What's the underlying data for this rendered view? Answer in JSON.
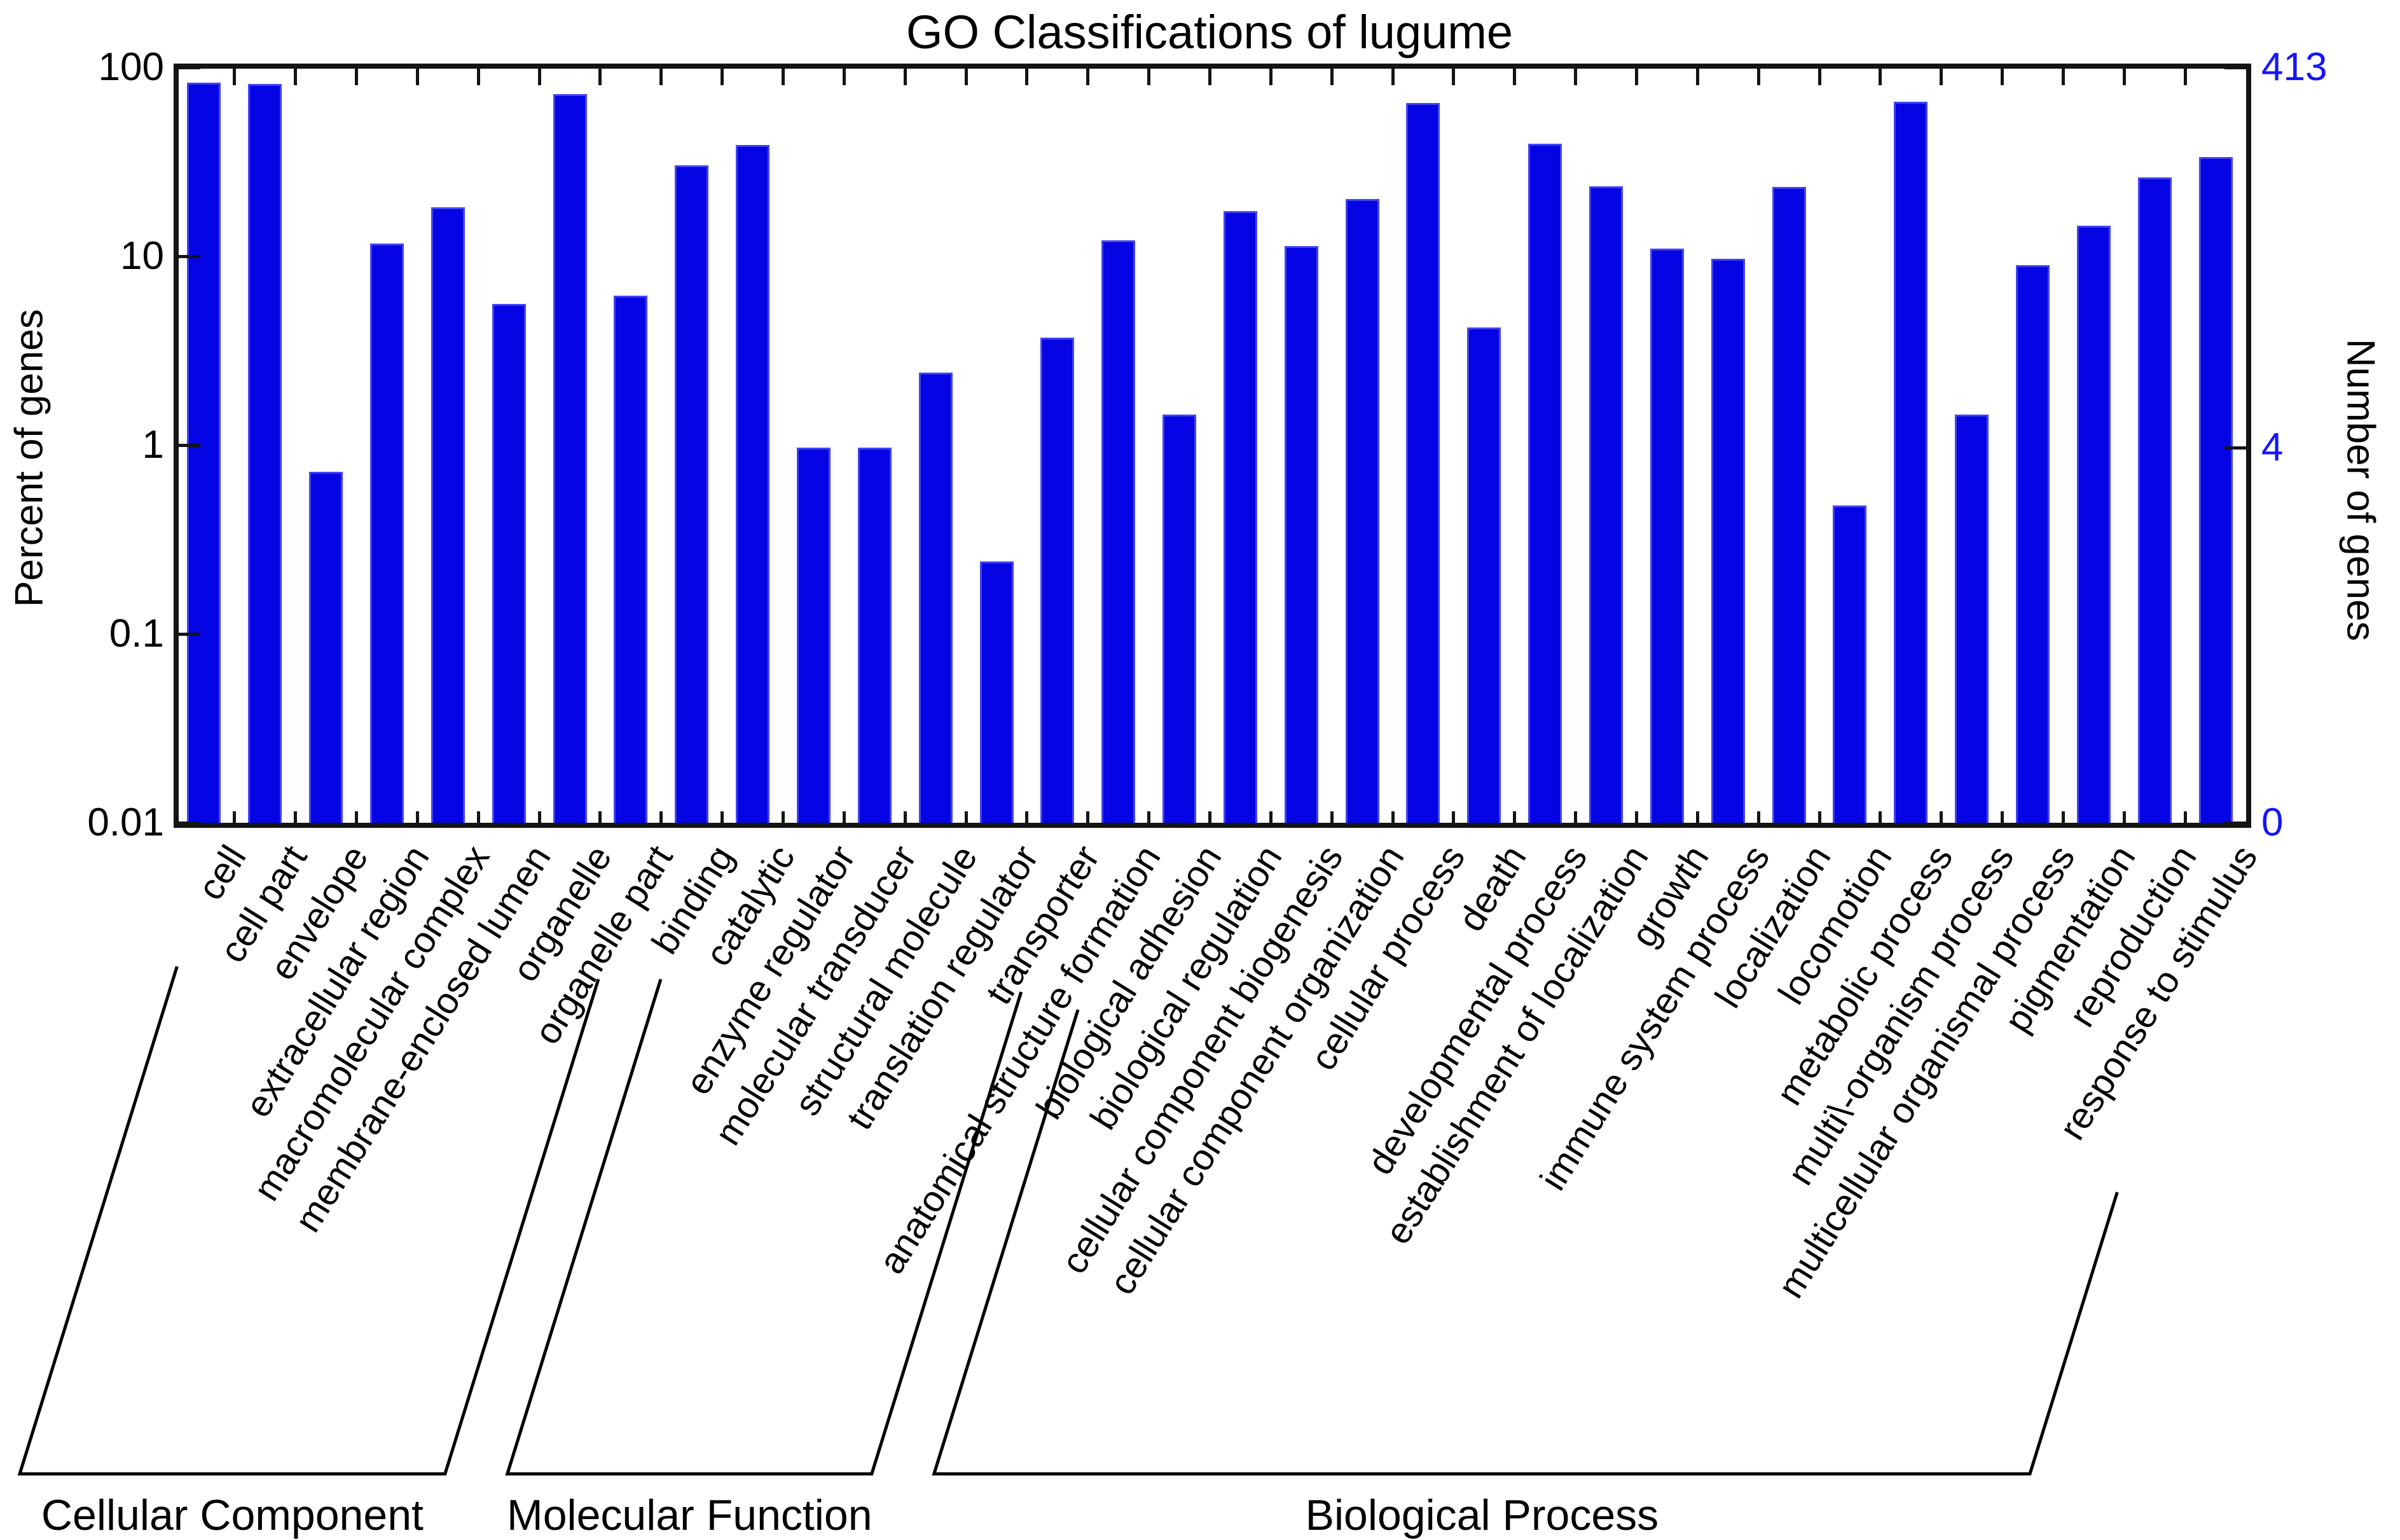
{
  "title": "GO Classifications of lugume",
  "colors": {
    "bar": "#0404e4",
    "bar_edge": "#4343f2",
    "right_axis_text": "#1414ff",
    "axis": "#141414",
    "text": "#000000"
  },
  "chart_data": {
    "type": "bar",
    "title": "GO Classifications of lugume",
    "ylabel_left": "Percent of genes",
    "ylabel_right": "Number of genes",
    "y_scale": "log",
    "ylim": [
      0.01,
      100
    ],
    "grid": false,
    "legend": "none",
    "total_genes_label": "413",
    "left_axis_ticks": [
      {
        "label": "100",
        "value": 100
      },
      {
        "label": "10",
        "value": 10
      },
      {
        "label": "1",
        "value": 1
      },
      {
        "label": "0.1",
        "value": 0.1
      },
      {
        "label": "0.01",
        "value": 0.01
      }
    ],
    "right_axis_ticks": [
      {
        "label": "413",
        "y_percent": 100
      },
      {
        "label": "4",
        "y_percent": 0.9685
      },
      {
        "label": "0",
        "y_percent": 0.01
      }
    ],
    "categories": [
      "cell",
      "cell part",
      "envelope",
      "extracellular region",
      "macromolecular complex",
      "membrane-enclosed lumen",
      "organelle",
      "organelle part",
      "binding",
      "catalytic",
      "enzyme regulator",
      "molecular transducer",
      "structural molecule",
      "translation regulator",
      "transporter",
      "anatomical structure formation",
      "biological adhesion",
      "biological regulation",
      "cellular component biogenesis",
      "cellular component organization",
      "cellular process",
      "death",
      "developmental process",
      "establishment of localization",
      "growth",
      "immune system process",
      "localization",
      "locomotion",
      "metabolic process",
      "multi\\-organism process",
      "multicellular organismal process",
      "pigmentation",
      "reproduction",
      "response to stimulus"
    ],
    "values": [
      83,
      81.6,
      0.72,
      11.7,
      18.2,
      5.6,
      72,
      6.2,
      30.3,
      38.7,
      0.97,
      0.97,
      2.42,
      0.242,
      3.7,
      12.1,
      1.45,
      17.4,
      11.3,
      20.1,
      65,
      4.2,
      39.5,
      23.5,
      11,
      9.7,
      23.2,
      0.48,
      66,
      1.45,
      9.0,
      14.5,
      26.2,
      33.4
    ],
    "groups": [
      {
        "label": "Cellular Component",
        "from": 0,
        "to": 7,
        "bracket_top_y": [
          1520,
          1540
        ]
      },
      {
        "label": "Molecular Function",
        "from": 8,
        "to": 14,
        "bracket_top_y": [
          1540,
          1560
        ]
      },
      {
        "label": "Biological Process",
        "from": 15,
        "to": 33,
        "bracket_top_y": [
          1588,
          1875
        ]
      }
    ]
  }
}
